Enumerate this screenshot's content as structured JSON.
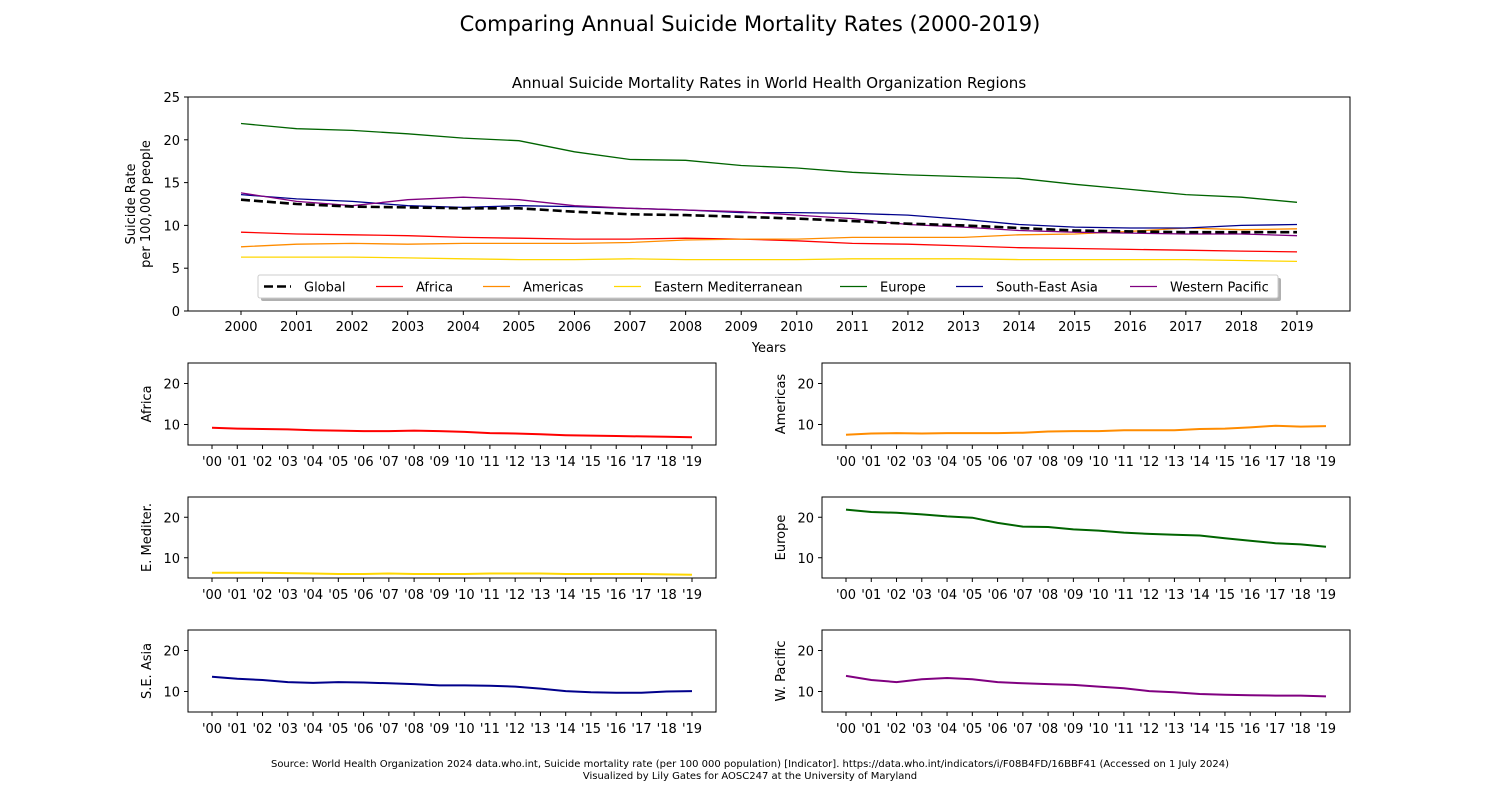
{
  "figure": {
    "suptitle": "Comparing Annual Suicide Mortality Rates (2000-2019)",
    "source_line1": "Source: World Health Organization 2024 data.who.int, Suicide mortality rate (per 100 000 population) [Indicator]. https://data.who.int/indicators/i/F08B4FD/16BBF41 (Accessed on 1 July 2024)",
    "source_line2": "Visualized by Lily Gates for AOSC247 at the University of Maryland"
  },
  "chart_data": [
    {
      "type": "line",
      "title": "Annual Suicide Mortality Rates in World Health Organization Regions",
      "xlabel": "Years",
      "ylabel": "Suicide Rate\nper 100,000 people",
      "ylim": [
        0,
        25
      ],
      "yticks": [
        0,
        5,
        10,
        15,
        20,
        25
      ],
      "x": [
        2000,
        2001,
        2002,
        2003,
        2004,
        2005,
        2006,
        2007,
        2008,
        2009,
        2010,
        2011,
        2012,
        2013,
        2014,
        2015,
        2016,
        2017,
        2018,
        2019
      ],
      "xtick_labels": [
        "2000",
        "2001",
        "2002",
        "2003",
        "2004",
        "2005",
        "2006",
        "2007",
        "2008",
        "2009",
        "2010",
        "2011",
        "2012",
        "2013",
        "2014",
        "2015",
        "2016",
        "2017",
        "2018",
        "2019"
      ],
      "legend": "bottom-center",
      "series": [
        {
          "name": "Global",
          "color": "#000000",
          "dashed": true,
          "values": [
            13.0,
            12.5,
            12.2,
            12.1,
            12.0,
            12.0,
            11.6,
            11.3,
            11.2,
            11.0,
            10.8,
            10.5,
            10.2,
            10.0,
            9.7,
            9.4,
            9.3,
            9.2,
            9.2,
            9.2
          ]
        },
        {
          "name": "Africa",
          "color": "#ff0000",
          "values": [
            9.2,
            9.0,
            8.9,
            8.8,
            8.6,
            8.5,
            8.4,
            8.4,
            8.5,
            8.4,
            8.2,
            7.9,
            7.8,
            7.6,
            7.4,
            7.3,
            7.2,
            7.1,
            7.0,
            6.9
          ]
        },
        {
          "name": "Americas",
          "color": "#ff8c00",
          "values": [
            7.5,
            7.8,
            7.9,
            7.8,
            7.9,
            7.9,
            7.9,
            8.0,
            8.3,
            8.4,
            8.4,
            8.6,
            8.6,
            8.6,
            8.9,
            9.0,
            9.3,
            9.7,
            9.5,
            9.6
          ]
        },
        {
          "name": "Eastern Mediterranean",
          "color": "#ffd700",
          "values": [
            6.3,
            6.3,
            6.3,
            6.2,
            6.1,
            6.0,
            6.0,
            6.1,
            6.0,
            6.0,
            6.0,
            6.1,
            6.1,
            6.1,
            6.0,
            6.0,
            6.0,
            6.0,
            5.9,
            5.8
          ]
        },
        {
          "name": "Europe",
          "color": "#006400",
          "values": [
            21.9,
            21.3,
            21.1,
            20.7,
            20.2,
            19.9,
            18.6,
            17.7,
            17.6,
            17.0,
            16.7,
            16.2,
            15.9,
            15.7,
            15.5,
            14.8,
            14.2,
            13.6,
            13.3,
            12.7
          ]
        },
        {
          "name": "South-East Asia",
          "color": "#00008b",
          "values": [
            13.6,
            13.1,
            12.8,
            12.3,
            12.1,
            12.3,
            12.2,
            12.0,
            11.8,
            11.5,
            11.5,
            11.4,
            11.2,
            10.7,
            10.1,
            9.8,
            9.7,
            9.7,
            10.0,
            10.1
          ]
        },
        {
          "name": "Western Pacific",
          "color": "#800080",
          "values": [
            13.8,
            12.8,
            12.3,
            13.0,
            13.3,
            13.0,
            12.3,
            12.0,
            11.8,
            11.6,
            11.2,
            10.8,
            10.1,
            9.8,
            9.4,
            9.2,
            9.1,
            9.0,
            9.0,
            8.8
          ]
        }
      ]
    },
    {
      "type": "line",
      "ylabel": "Africa",
      "color": "#ff0000",
      "ylim": [
        5,
        25
      ],
      "yticks": [
        10,
        20
      ],
      "xtick_labels": [
        "'00",
        "'01",
        "'02",
        "'03",
        "'04",
        "'05",
        "'06",
        "'07",
        "'08",
        "'09",
        "'10",
        "'11",
        "'12",
        "'13",
        "'14",
        "'15",
        "'16",
        "'17",
        "'18",
        "'19"
      ],
      "values": [
        9.2,
        9.0,
        8.9,
        8.8,
        8.6,
        8.5,
        8.4,
        8.4,
        8.5,
        8.4,
        8.2,
        7.9,
        7.8,
        7.6,
        7.4,
        7.3,
        7.2,
        7.1,
        7.0,
        6.9
      ]
    },
    {
      "type": "line",
      "ylabel": "Americas",
      "color": "#ff8c00",
      "ylim": [
        5,
        25
      ],
      "yticks": [
        10,
        20
      ],
      "xtick_labels": [
        "'00",
        "'01",
        "'02",
        "'03",
        "'04",
        "'05",
        "'06",
        "'07",
        "'08",
        "'09",
        "'10",
        "'11",
        "'12",
        "'13",
        "'14",
        "'15",
        "'16",
        "'17",
        "'18",
        "'19"
      ],
      "values": [
        7.5,
        7.8,
        7.9,
        7.8,
        7.9,
        7.9,
        7.9,
        8.0,
        8.3,
        8.4,
        8.4,
        8.6,
        8.6,
        8.6,
        8.9,
        9.0,
        9.3,
        9.7,
        9.5,
        9.6
      ]
    },
    {
      "type": "line",
      "ylabel": "E. Mediter.",
      "color": "#ffd700",
      "ylim": [
        5,
        25
      ],
      "yticks": [
        10,
        20
      ],
      "xtick_labels": [
        "'00",
        "'01",
        "'02",
        "'03",
        "'04",
        "'05",
        "'06",
        "'07",
        "'08",
        "'09",
        "'10",
        "'11",
        "'12",
        "'13",
        "'14",
        "'15",
        "'16",
        "'17",
        "'18",
        "'19"
      ],
      "values": [
        6.3,
        6.3,
        6.3,
        6.2,
        6.1,
        6.0,
        6.0,
        6.1,
        6.0,
        6.0,
        6.0,
        6.1,
        6.1,
        6.1,
        6.0,
        6.0,
        6.0,
        6.0,
        5.9,
        5.8
      ]
    },
    {
      "type": "line",
      "ylabel": "Europe",
      "color": "#006400",
      "ylim": [
        5,
        25
      ],
      "yticks": [
        10,
        20
      ],
      "xtick_labels": [
        "'00",
        "'01",
        "'02",
        "'03",
        "'04",
        "'05",
        "'06",
        "'07",
        "'08",
        "'09",
        "'10",
        "'11",
        "'12",
        "'13",
        "'14",
        "'15",
        "'16",
        "'17",
        "'18",
        "'19"
      ],
      "values": [
        21.9,
        21.3,
        21.1,
        20.7,
        20.2,
        19.9,
        18.6,
        17.7,
        17.6,
        17.0,
        16.7,
        16.2,
        15.9,
        15.7,
        15.5,
        14.8,
        14.2,
        13.6,
        13.3,
        12.7
      ]
    },
    {
      "type": "line",
      "ylabel": "S.E. Asia",
      "color": "#00008b",
      "ylim": [
        5,
        25
      ],
      "yticks": [
        10,
        20
      ],
      "xtick_labels": [
        "'00",
        "'01",
        "'02",
        "'03",
        "'04",
        "'05",
        "'06",
        "'07",
        "'08",
        "'09",
        "'10",
        "'11",
        "'12",
        "'13",
        "'14",
        "'15",
        "'16",
        "'17",
        "'18",
        "'19"
      ],
      "values": [
        13.6,
        13.1,
        12.8,
        12.3,
        12.1,
        12.3,
        12.2,
        12.0,
        11.8,
        11.5,
        11.5,
        11.4,
        11.2,
        10.7,
        10.1,
        9.8,
        9.7,
        9.7,
        10.0,
        10.1
      ]
    },
    {
      "type": "line",
      "ylabel": "W. Pacific",
      "color": "#800080",
      "ylim": [
        5,
        25
      ],
      "yticks": [
        10,
        20
      ],
      "xtick_labels": [
        "'00",
        "'01",
        "'02",
        "'03",
        "'04",
        "'05",
        "'06",
        "'07",
        "'08",
        "'09",
        "'10",
        "'11",
        "'12",
        "'13",
        "'14",
        "'15",
        "'16",
        "'17",
        "'18",
        "'19"
      ],
      "values": [
        13.8,
        12.8,
        12.3,
        13.0,
        13.3,
        13.0,
        12.3,
        12.0,
        11.8,
        11.6,
        11.2,
        10.8,
        10.1,
        9.8,
        9.4,
        9.2,
        9.1,
        9.0,
        9.0,
        8.8
      ]
    }
  ]
}
